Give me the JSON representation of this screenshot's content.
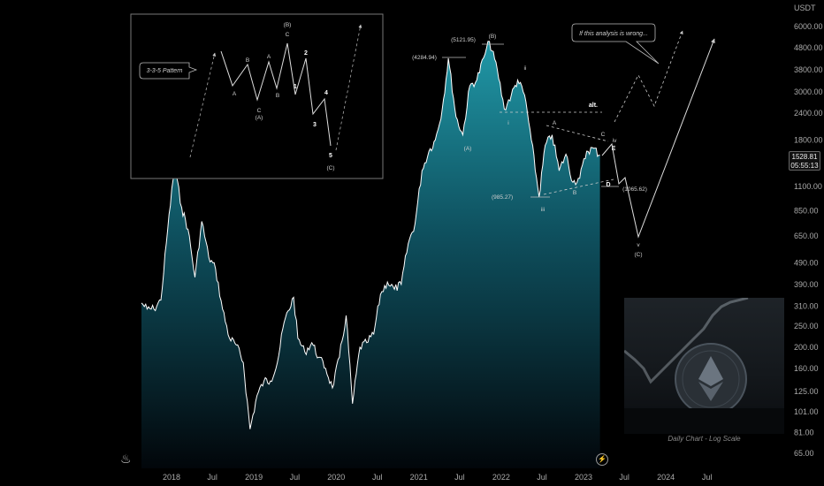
{
  "chart_data": {
    "type": "area",
    "scale": "log",
    "unit": "USDT",
    "y_ticks": [
      "6000.00",
      "4800.00",
      "3800.00",
      "3000.00",
      "2400.00",
      "1800.00",
      "1100.00",
      "850.00",
      "650.00",
      "490.00",
      "390.00",
      "310.00",
      "250.00",
      "200.00",
      "160.00",
      "125.00",
      "101.00",
      "81.00",
      "65.00"
    ],
    "x_ticks": [
      "2018",
      "Jul",
      "2019",
      "Jul",
      "2020",
      "Jul",
      "2021",
      "Jul",
      "2022",
      "Jul",
      "2023",
      "Jul",
      "2024",
      "Jul"
    ],
    "ylim": [
      60,
      7000
    ],
    "series": [
      {
        "points": [
          [
            "2017-08",
            320
          ],
          [
            "2017-09",
            300
          ],
          [
            "2017-10",
            300
          ],
          [
            "2017-11",
            330
          ],
          [
            "2017-12",
            700
          ],
          [
            "2018-01-14",
            1360
          ],
          [
            "2018-02",
            880
          ],
          [
            "2018-03",
            700
          ],
          [
            "2018-04",
            420
          ],
          [
            "2018-05",
            760
          ],
          [
            "2018-06",
            520
          ],
          [
            "2018-07",
            460
          ],
          [
            "2018-08",
            300
          ],
          [
            "2018-09",
            220
          ],
          [
            "2018-10",
            205
          ],
          [
            "2018-11",
            170
          ],
          [
            "2018-12-15",
            84
          ],
          [
            "2019-01",
            120
          ],
          [
            "2019-02",
            140
          ],
          [
            "2019-03",
            140
          ],
          [
            "2019-04",
            170
          ],
          [
            "2019-05",
            260
          ],
          [
            "2019-06-26",
            340
          ],
          [
            "2019-07",
            220
          ],
          [
            "2019-08",
            190
          ],
          [
            "2019-09",
            210
          ],
          [
            "2019-10",
            180
          ],
          [
            "2019-11",
            160
          ],
          [
            "2019-12",
            130
          ],
          [
            "2020-01",
            180
          ],
          [
            "2020-02-14",
            280
          ],
          [
            "2020-03-13",
            110
          ],
          [
            "2020-04",
            200
          ],
          [
            "2020-05",
            210
          ],
          [
            "2020-06",
            230
          ],
          [
            "2020-07",
            350
          ],
          [
            "2020-08",
            400
          ],
          [
            "2020-09",
            370
          ],
          [
            "2020-10",
            390
          ],
          [
            "2020-11",
            600
          ],
          [
            "2020-12",
            740
          ],
          [
            "2021-01",
            1300
          ],
          [
            "2021-02",
            1600
          ],
          [
            "2021-03",
            1800
          ],
          [
            "2021-04",
            2500
          ],
          [
            "2021-05-12",
            4284.94
          ],
          [
            "2021-06",
            2300
          ],
          [
            "2021-07",
            1900
          ],
          [
            "2021-08",
            3200
          ],
          [
            "2021-09",
            3400
          ],
          [
            "2021-10",
            4300
          ],
          [
            "2021-11-10",
            5121.95
          ],
          [
            "2021-12",
            3800
          ],
          [
            "2022-01",
            2500
          ],
          [
            "2022-02",
            2900
          ],
          [
            "2022-03",
            3400
          ],
          [
            "2022-04",
            2900
          ],
          [
            "2022-05",
            1800
          ],
          [
            "2022-06-18",
            985.27
          ],
          [
            "2022-07",
            1700
          ],
          [
            "2022-08",
            1900
          ],
          [
            "2022-09",
            1300
          ],
          [
            "2022-10",
            1550
          ],
          [
            "2022-11",
            1150
          ],
          [
            "2022-12",
            1200
          ],
          [
            "2023-01",
            1600
          ],
          [
            "2023-02",
            1650
          ],
          [
            "2023-03",
            1528.81
          ]
        ]
      }
    ],
    "last_price": "1528.81",
    "countdown": "05:55:13",
    "wave_labels": {
      "A_peak": "(4284.94)",
      "B_peak": "(5121.95)",
      "B": "(B)",
      "A": "(A)",
      "low": "(985.27)",
      "low2": "(1065.62)",
      "ii": "ii",
      "iii": "iii",
      "iv": "iv",
      "v": "v",
      "C": "(C)",
      "i": "i",
      "a": "A",
      "b": "B",
      "c": "C",
      "d": "D",
      "e": "E",
      "alt": "alt.",
      "note": "If this analysis is wrong..."
    },
    "inset": {
      "title": "3-3-5 Pattern",
      "labels": [
        "A",
        "B",
        "C",
        "(A)",
        "A",
        "B",
        "C",
        "(B)",
        "1",
        "2",
        "3",
        "4",
        "5",
        "(C)"
      ]
    },
    "thumb_caption": "Daily Chart - Log Scale",
    "colors": {
      "area_top": "#1d8a99",
      "area_bottom": "#03070a",
      "line": "#ffffff",
      "dash": "#c9c9c9"
    }
  }
}
